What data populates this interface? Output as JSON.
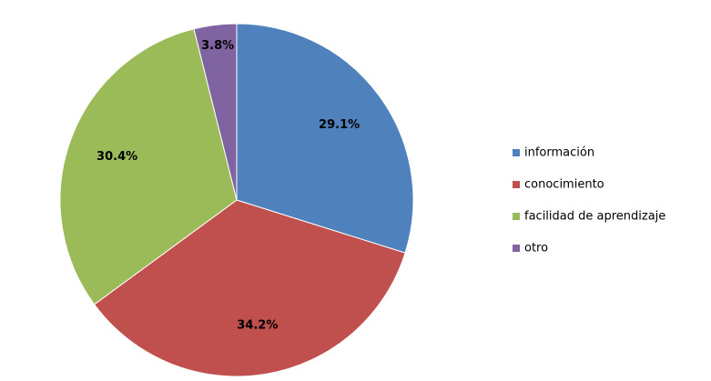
{
  "chart_data": {
    "type": "pie",
    "categories": [
      "información",
      "conocimiento",
      "facilidad de aprendizaje",
      "otro"
    ],
    "values": [
      29.1,
      34.2,
      30.4,
      3.8
    ],
    "value_labels": [
      "29.1%",
      "34.2%",
      "30.4%",
      "3.8%"
    ],
    "colors": [
      "#4f81bd",
      "#c0504d",
      "#9bbb59",
      "#8064a2"
    ],
    "legend": "right"
  }
}
